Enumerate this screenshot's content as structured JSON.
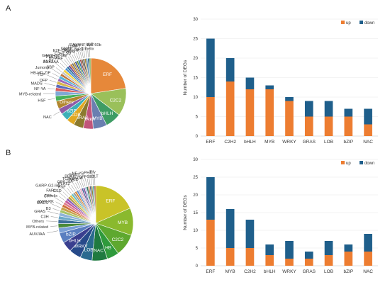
{
  "panels": {
    "a_label": "A",
    "b_label": "B"
  },
  "colors": {
    "up": "#ed7d31",
    "down": "#1f5f8b",
    "axis": "#d9d9d9",
    "text": "#333333"
  },
  "chart_data": [
    {
      "type": "pie",
      "panel": "A",
      "slices": [
        {
          "label": "ERF",
          "value": 25,
          "color": "#e6883a"
        },
        {
          "label": "C2C2",
          "value": 14,
          "color": "#9ac05a"
        },
        {
          "label": "bHLH",
          "value": 8,
          "color": "#3e9c64"
        },
        {
          "label": "MYB",
          "value": 7,
          "color": "#6a7fb0"
        },
        {
          "label": "WRKY",
          "value": 5,
          "color": "#c1557a"
        },
        {
          "label": "GRAS",
          "value": 5,
          "color": "#8b7a2e"
        },
        {
          "label": "LOB",
          "value": 4,
          "color": "#e0a822"
        },
        {
          "label": "bZIP",
          "value": 4,
          "color": "#3db0b8"
        },
        {
          "label": "NAC",
          "value": 3,
          "color": "#8f5aa6"
        },
        {
          "label": "Others",
          "value": 4,
          "color": "#b1862e"
        },
        {
          "label": "HSF",
          "value": 2.6,
          "color": "#46b15b"
        },
        {
          "label": "MYB-related",
          "value": 2.4,
          "color": "#7fa9d6"
        },
        {
          "label": "NF-YA",
          "value": 1.8,
          "color": "#d65c5c"
        },
        {
          "label": "MADS",
          "value": 1.7,
          "color": "#5a6bbd"
        },
        {
          "label": "OFP",
          "value": 1.6,
          "color": "#d8b84a"
        },
        {
          "label": "TCP",
          "value": 1.5,
          "color": "#9e6ab8"
        },
        {
          "label": "HB-HD-ZIP",
          "value": 1.5,
          "color": "#59b3d6"
        },
        {
          "label": "Jumonji",
          "value": 1.3,
          "color": "#c1763a"
        },
        {
          "label": "SBP",
          "value": 1.3,
          "color": "#c7c7c7"
        },
        {
          "label": "SNF2",
          "value": 1.3,
          "color": "#f0d23c"
        },
        {
          "label": "AUX/IAA",
          "value": 1.2,
          "color": "#4d8fcf"
        },
        {
          "label": "PLATZ",
          "value": 1.1,
          "color": "#2e6f9e"
        },
        {
          "label": "B3-ARF",
          "value": 1.0,
          "color": "#6c3f8a"
        },
        {
          "label": "C3H",
          "value": 1.0,
          "color": "#c77a2a"
        },
        {
          "label": "GARP-G2-like",
          "value": 0.9,
          "color": "#6e6e6e"
        },
        {
          "label": "E2F-DP",
          "value": 0.9,
          "color": "#a88b2e"
        },
        {
          "label": "CSD",
          "value": 0.9,
          "color": "#3a4fa0"
        },
        {
          "label": "GNAT",
          "value": 0.9,
          "color": "#6f9c3a"
        },
        {
          "label": "HMG",
          "value": 0.9,
          "color": "#2f6f9f"
        },
        {
          "label": "LUG",
          "value": 0.8,
          "color": "#9b3d3d"
        },
        {
          "label": "RWP-RK",
          "value": 0.8,
          "color": "#7a6a4a"
        },
        {
          "label": "SET",
          "value": 0.8,
          "color": "#4d4d4d"
        },
        {
          "label": "SRS",
          "value": 0.8,
          "color": "#b38a3a"
        },
        {
          "label": "SWI/SNF-BAF60b",
          "value": 0.8,
          "color": "#3f7fb0"
        },
        {
          "label": "Trihelix",
          "value": 0.8,
          "color": "#2d5c8a"
        },
        {
          "label": "ULT",
          "value": 0.8,
          "color": "#7aa84a"
        }
      ]
    },
    {
      "type": "bar",
      "panel": "A",
      "stacked": true,
      "ylabel": "Number of DEGs",
      "ylim": [
        0,
        30
      ],
      "yticks": [
        0,
        5,
        10,
        15,
        20,
        25,
        30
      ],
      "legend": "top-right",
      "categories": [
        "ERF",
        "C2H2",
        "bHLH",
        "MYB",
        "WRKY",
        "GRAS",
        "LOB",
        "bZIP",
        "NAC"
      ],
      "series": [
        {
          "name": "up",
          "values": [
            10,
            14,
            12,
            12,
            9,
            5,
            5,
            5,
            3
          ]
        },
        {
          "name": "down",
          "values": [
            15,
            6,
            3,
            1,
            1,
            4,
            4,
            2,
            4
          ]
        }
      ]
    },
    {
      "type": "pie",
      "panel": "B",
      "slices": [
        {
          "label": "ERF",
          "value": 25,
          "color": "#c9c328"
        },
        {
          "label": "MYB",
          "value": 16,
          "color": "#8ab92e"
        },
        {
          "label": "C2C2",
          "value": 13,
          "color": "#5ea82f"
        },
        {
          "label": "HB",
          "value": 7,
          "color": "#2f9a3c"
        },
        {
          "label": "NAC",
          "value": 9,
          "color": "#1f7a40"
        },
        {
          "label": "LOB",
          "value": 7,
          "color": "#2a6a8f"
        },
        {
          "label": "WRKY",
          "value": 7,
          "color": "#274a8a"
        },
        {
          "label": "bHLH",
          "value": 6,
          "color": "#3a3f8f"
        },
        {
          "label": "bZIP",
          "value": 6,
          "color": "#5a7fc0"
        },
        {
          "label": "AUX/IAA",
          "value": 3,
          "color": "#7aa0d6"
        },
        {
          "label": "MYB-related",
          "value": 2.5,
          "color": "#4b8a3a"
        },
        {
          "label": "Others",
          "value": 2.5,
          "color": "#3d6f9a"
        },
        {
          "label": "C3H",
          "value": 2,
          "color": "#6aa8c8"
        },
        {
          "label": "GRAS",
          "value": 2,
          "color": "#8fb3d9"
        },
        {
          "label": "B3",
          "value": 1.8,
          "color": "#a7c46a"
        },
        {
          "label": "MADS",
          "value": 1.8,
          "color": "#c8a24a"
        },
        {
          "label": "RWP-RK",
          "value": 1.6,
          "color": "#d0703a"
        },
        {
          "label": "CPP",
          "value": 1.5,
          "color": "#e07a8a"
        },
        {
          "label": "Trihelix",
          "value": 1.5,
          "color": "#c45a9a"
        },
        {
          "label": "FAR1",
          "value": 1.4,
          "color": "#8a5ab8"
        },
        {
          "label": "CSD",
          "value": 1.4,
          "color": "#b0a04a"
        },
        {
          "label": "GARP-G2-like",
          "value": 1.3,
          "color": "#e0c04a"
        },
        {
          "label": "HSF",
          "value": 1.3,
          "color": "#6ac0c8"
        },
        {
          "label": "GRF",
          "value": 1.2,
          "color": "#9a9a9a"
        },
        {
          "label": "PLATZ",
          "value": 1.2,
          "color": "#d98a3a"
        },
        {
          "label": "TCP",
          "value": 1.1,
          "color": "#5a8ad0"
        },
        {
          "label": "SBP",
          "value": 1.1,
          "color": "#c0c0c0"
        },
        {
          "label": "BES1",
          "value": 1.0,
          "color": "#e6a0c0"
        },
        {
          "label": "ARID",
          "value": 1.0,
          "color": "#4a6a9a"
        },
        {
          "label": "GNAT",
          "value": 1.0,
          "color": "#7a4a9a"
        },
        {
          "label": "CAMTA",
          "value": 1.0,
          "color": "#a0c0e0"
        },
        {
          "label": "NF-YB",
          "value": 1.0,
          "color": "#3a7a5a"
        },
        {
          "label": "OFP",
          "value": 0.9,
          "color": "#c87a5a"
        },
        {
          "label": "PHD",
          "value": 0.9,
          "color": "#5a5a8a"
        },
        {
          "label": "SET",
          "value": 0.9,
          "color": "#8a8a3a"
        },
        {
          "label": "Tify",
          "value": 0.9,
          "color": "#3a9aa0"
        },
        {
          "label": "ULT",
          "value": 0.9,
          "color": "#b05a3a"
        }
      ]
    },
    {
      "type": "bar",
      "panel": "B",
      "stacked": true,
      "ylabel": "Number of DEGs",
      "ylim": [
        0,
        30
      ],
      "yticks": [
        0,
        5,
        10,
        15,
        20,
        25,
        30
      ],
      "legend": "top-right",
      "categories": [
        "ERF",
        "MYB",
        "C2H2",
        "bHLH",
        "WRKY",
        "GRAS",
        "LOB",
        "bZIP",
        "NAC"
      ],
      "series": [
        {
          "name": "up",
          "values": [
            13,
            5,
            5,
            3,
            2,
            2,
            3,
            4,
            4
          ]
        },
        {
          "name": "down",
          "values": [
            12,
            11,
            8,
            3,
            5,
            2,
            4,
            2,
            5
          ]
        }
      ]
    }
  ]
}
